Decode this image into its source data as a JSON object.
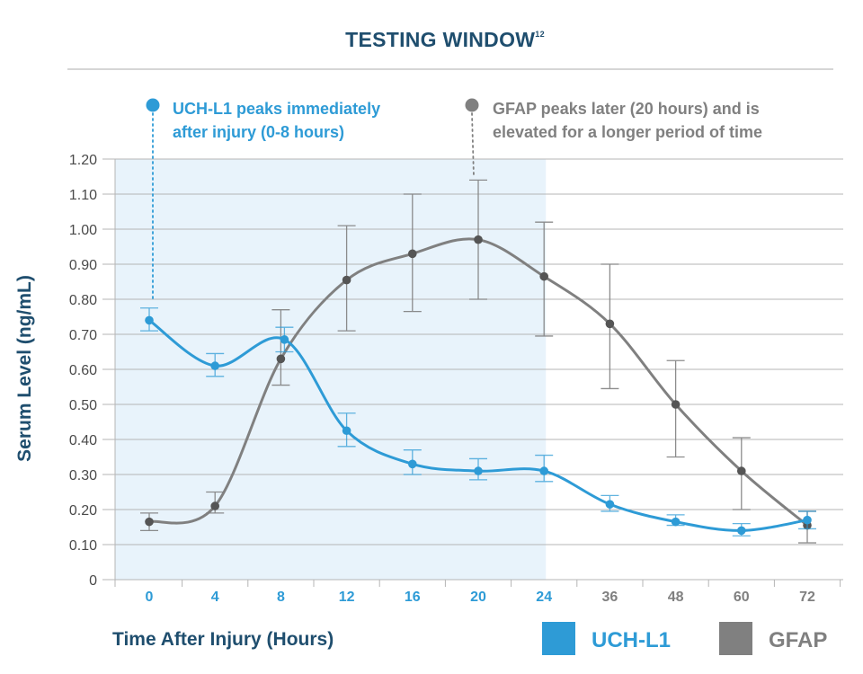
{
  "chart_data": {
    "type": "line",
    "title": "TESTING WINDOW",
    "title_superscript": "12",
    "xlabel": "Time After Injury (Hours)",
    "ylabel": "Serum Level (ng/mL)",
    "categories": [
      "0",
      "4",
      "8",
      "12",
      "16",
      "20",
      "24",
      "36",
      "48",
      "60",
      "72"
    ],
    "y_ticks": [
      "0",
      "0.10",
      "0.20",
      "0.30",
      "0.40",
      "0.50",
      "0.60",
      "0.70",
      "0.80",
      "0.90",
      "1.00",
      "1.10",
      "1.20"
    ],
    "ylim": [
      0,
      1.2
    ],
    "grid": true,
    "testing_window_hours": [
      "0",
      "24"
    ],
    "series": [
      {
        "name": "UCH-L1",
        "color": "#2e9bd6",
        "values": [
          0.74,
          0.61,
          0.685,
          0.425,
          0.33,
          0.31,
          0.31,
          0.215,
          0.165,
          0.14,
          0.17
        ],
        "error_low": [
          0.71,
          0.58,
          0.65,
          0.38,
          0.3,
          0.285,
          0.28,
          0.195,
          0.155,
          0.125,
          0.145
        ],
        "error_high": [
          0.775,
          0.645,
          0.72,
          0.475,
          0.37,
          0.345,
          0.355,
          0.24,
          0.185,
          0.16,
          0.195
        ]
      },
      {
        "name": "GFAP",
        "color": "#808080",
        "values": [
          0.165,
          0.21,
          0.63,
          0.855,
          0.93,
          0.97,
          0.865,
          0.73,
          0.5,
          0.31,
          0.155
        ],
        "error_low": [
          0.14,
          0.19,
          0.555,
          0.71,
          0.765,
          0.8,
          0.695,
          0.545,
          0.35,
          0.2,
          0.105
        ],
        "error_high": [
          0.19,
          0.25,
          0.77,
          1.01,
          1.1,
          1.14,
          1.02,
          0.9,
          0.625,
          0.405,
          0.195
        ]
      }
    ],
    "annotations": [
      {
        "series": "UCH-L1",
        "lines": [
          "UCH-L1 peaks immediately",
          "after injury (0-8 hours)"
        ]
      },
      {
        "series": "GFAP",
        "lines": [
          "GFAP peaks later (20 hours) and is",
          "elevated for a longer period of time"
        ]
      }
    ],
    "legend": {
      "position": "bottom-right",
      "entries": [
        "UCH-L1",
        "GFAP"
      ]
    }
  }
}
